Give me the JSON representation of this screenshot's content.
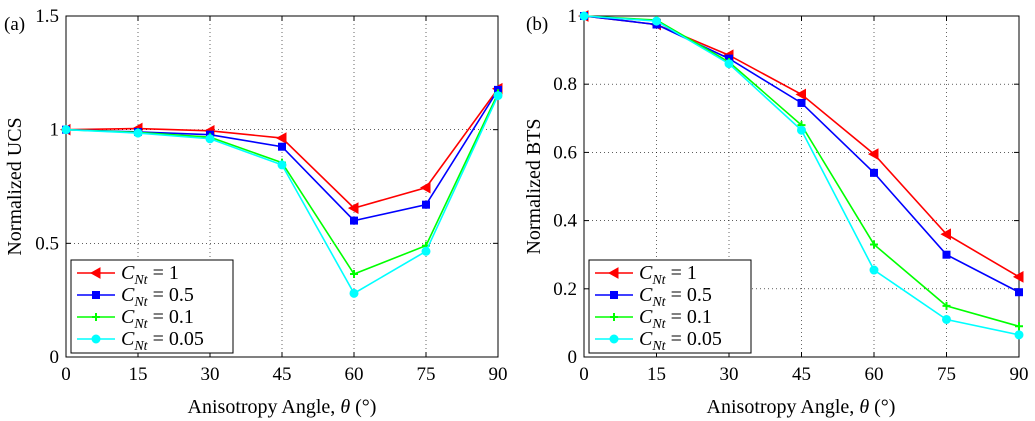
{
  "chart_data": [
    {
      "type": "line",
      "panel_label": "(a)",
      "title": "",
      "xlabel": "Anisotropy Angle, θ (°)",
      "ylabel": "Normalized UCS",
      "xlim": [
        0,
        90
      ],
      "ylim": [
        0,
        1.5
      ],
      "x": [
        0,
        15,
        30,
        45,
        60,
        75,
        90
      ],
      "xticks": [
        "0",
        "15",
        "30",
        "45",
        "60",
        "75",
        "90"
      ],
      "yticks": [
        {
          "value": 0,
          "label": "0"
        },
        {
          "value": 0.5,
          "label": "0.5"
        },
        {
          "value": 1,
          "label": "1"
        },
        {
          "value": 1.5,
          "label": "1.5"
        }
      ],
      "grid": true,
      "legend_position": "bottom-left",
      "series": [
        {
          "name": "C_Nt = 1",
          "value_label": "1",
          "color": "#ff0000",
          "marker": "triangle-left",
          "values": [
            1.0,
            1.005,
            0.995,
            0.963,
            0.655,
            0.745,
            1.18
          ]
        },
        {
          "name": "C_Nt = 0.5",
          "value_label": "0.5",
          "color": "#0000ff",
          "marker": "square",
          "values": [
            1.0,
            0.99,
            0.978,
            0.925,
            0.6,
            0.67,
            1.175
          ]
        },
        {
          "name": "C_Nt = 0.1",
          "value_label": "0.1",
          "color": "#00ff00",
          "marker": "plus",
          "values": [
            1.0,
            0.988,
            0.967,
            0.855,
            0.365,
            0.49,
            1.16
          ]
        },
        {
          "name": "C_Nt = 0.05",
          "value_label": "0.05",
          "color": "#00ffff",
          "marker": "circle",
          "values": [
            1.0,
            0.985,
            0.96,
            0.845,
            0.28,
            0.465,
            1.15
          ]
        }
      ]
    },
    {
      "type": "line",
      "panel_label": "(b)",
      "title": "",
      "xlabel": "Anisotropy Angle, θ (°)",
      "ylabel": "Normalized BTS",
      "xlim": [
        0,
        90
      ],
      "ylim": [
        0,
        1
      ],
      "x": [
        0,
        15,
        30,
        45,
        60,
        75,
        90
      ],
      "xticks": [
        "0",
        "15",
        "30",
        "45",
        "60",
        "75",
        "90"
      ],
      "yticks": [
        {
          "value": 0,
          "label": "0"
        },
        {
          "value": 0.2,
          "label": "0.2"
        },
        {
          "value": 0.4,
          "label": "0.4"
        },
        {
          "value": 0.6,
          "label": "0.6"
        },
        {
          "value": 0.8,
          "label": "0.8"
        },
        {
          "value": 1,
          "label": "1"
        }
      ],
      "grid": true,
      "legend_position": "bottom-left",
      "series": [
        {
          "name": "C_Nt = 1",
          "value_label": "1",
          "color": "#ff0000",
          "marker": "triangle-left",
          "values": [
            1.0,
            0.975,
            0.885,
            0.77,
            0.595,
            0.36,
            0.235
          ]
        },
        {
          "name": "C_Nt = 0.5",
          "value_label": "0.5",
          "color": "#0000ff",
          "marker": "square",
          "values": [
            1.0,
            0.975,
            0.875,
            0.745,
            0.54,
            0.3,
            0.19
          ]
        },
        {
          "name": "C_Nt = 0.1",
          "value_label": "0.1",
          "color": "#00ff00",
          "marker": "plus",
          "values": [
            1.0,
            0.988,
            0.865,
            0.68,
            0.33,
            0.15,
            0.09
          ]
        },
        {
          "name": "C_Nt = 0.05",
          "value_label": "0.05",
          "color": "#00ffff",
          "marker": "circle",
          "values": [
            1.0,
            0.985,
            0.86,
            0.665,
            0.255,
            0.11,
            0.065
          ]
        }
      ]
    }
  ]
}
